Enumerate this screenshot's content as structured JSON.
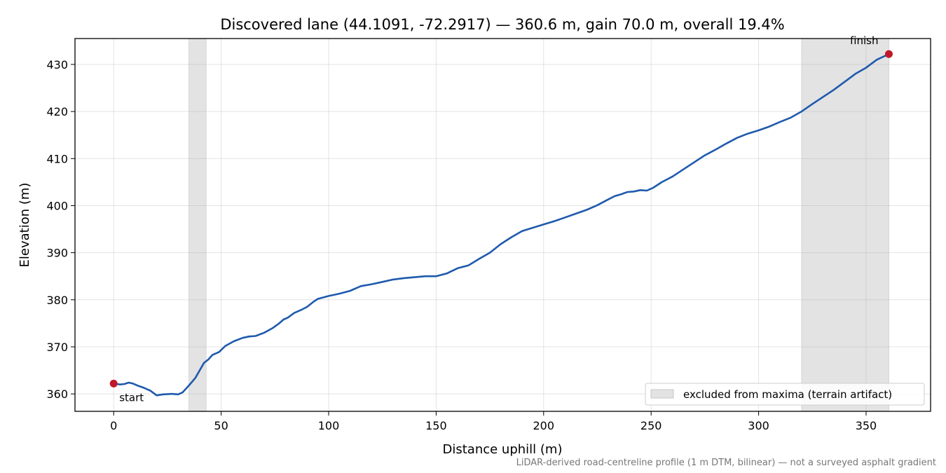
{
  "chart_data": {
    "type": "line",
    "title": "Discovered lane (44.1091, -72.2917) — 360.6 m, gain 70.0 m, overall 19.4%",
    "xlabel": "Distance uphill (m)",
    "ylabel": "Elevation (m)",
    "xlim": [
      -18,
      380
    ],
    "ylim": [
      356.3,
      435.5
    ],
    "x_ticks": [
      0,
      50,
      100,
      150,
      200,
      250,
      300,
      350
    ],
    "y_ticks": [
      360,
      370,
      380,
      390,
      400,
      410,
      420,
      430
    ],
    "grid": true,
    "series": [
      {
        "color": "#1f5aad",
        "points": [
          [
            0,
            362.2
          ],
          [
            3,
            362.0
          ],
          [
            5,
            362.1
          ],
          [
            7,
            362.4
          ],
          [
            9,
            362.2
          ],
          [
            11,
            361.8
          ],
          [
            14,
            361.3
          ],
          [
            17,
            360.7
          ],
          [
            20,
            359.7
          ],
          [
            23,
            359.9
          ],
          [
            27,
            360.0
          ],
          [
            30,
            359.9
          ],
          [
            32,
            360.3
          ],
          [
            35,
            361.8
          ],
          [
            38,
            363.4
          ],
          [
            40,
            365.0
          ],
          [
            42,
            366.6
          ],
          [
            44,
            367.3
          ],
          [
            46,
            368.3
          ],
          [
            49,
            368.9
          ],
          [
            52,
            370.2
          ],
          [
            56,
            371.2
          ],
          [
            60,
            371.9
          ],
          [
            63,
            372.2
          ],
          [
            66,
            372.3
          ],
          [
            70,
            373.0
          ],
          [
            74,
            374.0
          ],
          [
            77,
            375.0
          ],
          [
            79,
            375.8
          ],
          [
            81,
            376.2
          ],
          [
            84,
            377.2
          ],
          [
            87,
            377.8
          ],
          [
            90,
            378.5
          ],
          [
            93,
            379.6
          ],
          [
            95,
            380.2
          ],
          [
            100,
            380.8
          ],
          [
            105,
            381.3
          ],
          [
            110,
            381.9
          ],
          [
            115,
            382.9
          ],
          [
            120,
            383.3
          ],
          [
            125,
            383.8
          ],
          [
            130,
            384.3
          ],
          [
            135,
            384.6
          ],
          [
            140,
            384.8
          ],
          [
            145,
            385.0
          ],
          [
            150,
            385.0
          ],
          [
            155,
            385.6
          ],
          [
            160,
            386.7
          ],
          [
            165,
            387.3
          ],
          [
            170,
            388.7
          ],
          [
            175,
            390.0
          ],
          [
            180,
            391.8
          ],
          [
            185,
            393.3
          ],
          [
            190,
            394.6
          ],
          [
            195,
            395.3
          ],
          [
            200,
            396.0
          ],
          [
            205,
            396.7
          ],
          [
            210,
            397.5
          ],
          [
            215,
            398.3
          ],
          [
            220,
            399.1
          ],
          [
            225,
            400.1
          ],
          [
            230,
            401.3
          ],
          [
            233,
            402.0
          ],
          [
            236,
            402.4
          ],
          [
            239,
            402.9
          ],
          [
            242,
            403.0
          ],
          [
            245,
            403.3
          ],
          [
            248,
            403.2
          ],
          [
            251,
            403.8
          ],
          [
            255,
            405.0
          ],
          [
            260,
            406.2
          ],
          [
            265,
            407.7
          ],
          [
            270,
            409.2
          ],
          [
            275,
            410.7
          ],
          [
            280,
            411.9
          ],
          [
            285,
            413.2
          ],
          [
            290,
            414.4
          ],
          [
            295,
            415.3
          ],
          [
            300,
            416.0
          ],
          [
            305,
            416.8
          ],
          [
            310,
            417.8
          ],
          [
            315,
            418.7
          ],
          [
            320,
            420.0
          ],
          [
            325,
            421.6
          ],
          [
            330,
            423.1
          ],
          [
            335,
            424.6
          ],
          [
            340,
            426.3
          ],
          [
            345,
            428.0
          ],
          [
            350,
            429.3
          ],
          [
            355,
            431.0
          ],
          [
            360.6,
            432.2
          ]
        ]
      }
    ],
    "markers": [
      {
        "x": 0,
        "y": 362.2,
        "label": "start",
        "color": "#c0182a"
      },
      {
        "x": 360.6,
        "y": 432.2,
        "label": "finish",
        "color": "#c0182a"
      }
    ],
    "excluded_ranges": [
      [
        35,
        43
      ],
      [
        320,
        360.6
      ]
    ],
    "legend": {
      "label": "excluded from maxima (terrain artifact)",
      "placement": "lower-right",
      "color": "#e3e3e3"
    },
    "footnote": "LiDAR-derived road-centreline profile (1 m DTM, bilinear) — not a surveyed asphalt gradient"
  }
}
